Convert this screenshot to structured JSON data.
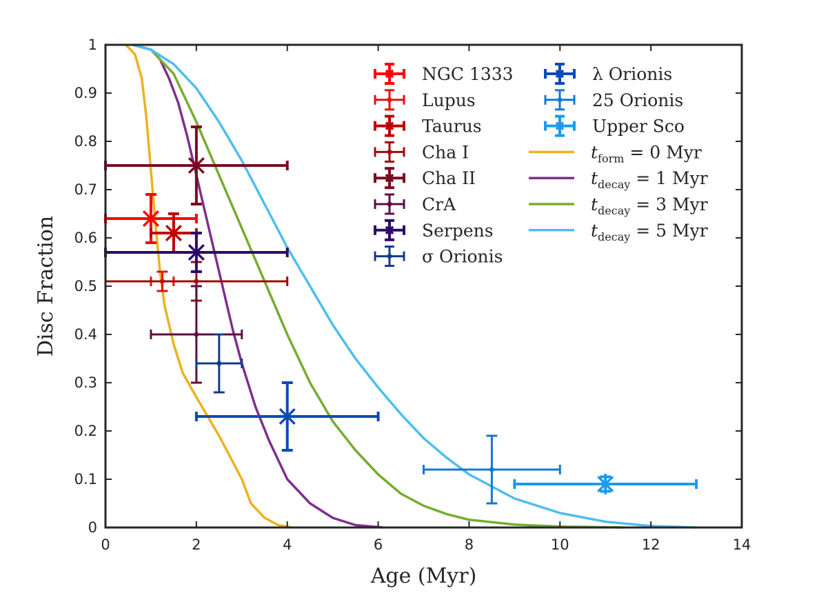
{
  "chart_data": {
    "type": "scatter",
    "xlabel": "Age (Myr)",
    "ylabel": "Disc Fraction",
    "xlim": [
      0,
      14
    ],
    "ylim": [
      0,
      1
    ],
    "xticks": [
      "0",
      "2",
      "4",
      "6",
      "8",
      "10",
      "12",
      "14"
    ],
    "yticks": [
      "0",
      "0.1",
      "0.2",
      "0.3",
      "0.4",
      "0.5",
      "0.6",
      "0.7",
      "0.8",
      "0.9",
      "1"
    ],
    "grid": false,
    "legend_position": "top-right",
    "points": [
      {
        "name": "NGC 1333",
        "x": 1.0,
        "y": 0.64,
        "xerr": [
          1.0,
          1.0
        ],
        "yerr": [
          0.05,
          0.05
        ],
        "marker": "asterisk",
        "color": "#ff0000"
      },
      {
        "name": "Lupus",
        "x": 1.25,
        "y": 0.51,
        "xerr": [
          0.25,
          0.25
        ],
        "yerr": [
          0.02,
          0.02
        ],
        "marker": "dot",
        "color": "#e81010"
      },
      {
        "name": "Taurus",
        "x": 1.5,
        "y": 0.61,
        "xerr": [
          0.5,
          0.5
        ],
        "yerr": [
          0.04,
          0.04
        ],
        "marker": "asterisk",
        "color": "#c00000"
      },
      {
        "name": "Cha I",
        "x": 2.0,
        "y": 0.51,
        "xerr": [
          2.0,
          2.0
        ],
        "yerr": [
          0.04,
          0.04
        ],
        "marker": "dot",
        "color": "#9e0b0b"
      },
      {
        "name": "Cha II",
        "x": 2.0,
        "y": 0.75,
        "xerr": [
          2.0,
          2.0
        ],
        "yerr": [
          0.08,
          0.08
        ],
        "marker": "asterisk",
        "color": "#7a0a22"
      },
      {
        "name": "CrA",
        "x": 2.0,
        "y": 0.4,
        "xerr": [
          1.0,
          1.0
        ],
        "yerr": [
          0.1,
          0.1
        ],
        "marker": "dot",
        "color": "#5a0f45"
      },
      {
        "name": "Serpens",
        "x": 2.0,
        "y": 0.57,
        "xerr": [
          2.0,
          2.0
        ],
        "yerr": [
          0.04,
          0.04
        ],
        "marker": "asterisk",
        "color": "#2c0a6b"
      },
      {
        "name": "σ Orionis",
        "x": 2.5,
        "y": 0.34,
        "xerr": [
          0.5,
          0.5
        ],
        "yerr": [
          0.06,
          0.06
        ],
        "marker": "dot",
        "color": "#133a8a"
      },
      {
        "name": "λ Orionis",
        "x": 4.0,
        "y": 0.23,
        "xerr": [
          2.0,
          2.0
        ],
        "yerr": [
          0.07,
          0.07
        ],
        "marker": "asterisk",
        "color": "#0b4bb8"
      },
      {
        "name": "25 Orionis",
        "x": 8.5,
        "y": 0.12,
        "xerr": [
          1.5,
          1.5
        ],
        "yerr": [
          0.07,
          0.07
        ],
        "marker": "dot",
        "color": "#1677d4"
      },
      {
        "name": "Upper Sco",
        "x": 11.0,
        "y": 0.09,
        "xerr": [
          2.0,
          2.0
        ],
        "yerr": [
          0.015,
          0.015
        ],
        "marker": "asterisk",
        "color": "#1c9af0"
      }
    ],
    "series": [
      {
        "name": "t_form = 0 Myr",
        "legend_prefix": "t",
        "legend_sub": "form",
        "legend_rest": " = 0 Myr",
        "color": "#edb120",
        "x": [
          0.45,
          0.65,
          0.8,
          0.9,
          1.0,
          1.1,
          1.2,
          1.3,
          1.5,
          1.7,
          2.0,
          2.5,
          3.0,
          3.2,
          3.5,
          3.8,
          4.1
        ],
        "y": [
          1.0,
          0.98,
          0.93,
          0.85,
          0.74,
          0.63,
          0.53,
          0.46,
          0.38,
          0.32,
          0.27,
          0.19,
          0.1,
          0.05,
          0.02,
          0.005,
          0.0
        ]
      },
      {
        "name": "t_decay = 1 Myr",
        "legend_prefix": "t",
        "legend_sub": "decay",
        "legend_rest": " = 1 Myr",
        "color": "#7e2f8e",
        "x": [
          0.6,
          1.0,
          1.2,
          1.4,
          1.6,
          1.8,
          2.0,
          2.2,
          2.4,
          2.6,
          2.8,
          3.0,
          3.3,
          3.6,
          4.0,
          4.5,
          5.0,
          5.5,
          6.1
        ],
        "y": [
          1.0,
          0.99,
          0.97,
          0.93,
          0.88,
          0.81,
          0.73,
          0.65,
          0.57,
          0.49,
          0.41,
          0.34,
          0.25,
          0.18,
          0.1,
          0.05,
          0.02,
          0.005,
          0.0
        ]
      },
      {
        "name": "t_decay = 3 Myr",
        "legend_prefix": "t",
        "legend_sub": "decay",
        "legend_rest": " = 3 Myr",
        "color": "#77ac30",
        "x": [
          0.6,
          1.0,
          1.5,
          2.0,
          2.5,
          3.0,
          3.5,
          4.0,
          4.5,
          5.0,
          5.5,
          6.0,
          6.5,
          7.0,
          7.5,
          8.0,
          9.0,
          10.0,
          11.4
        ],
        "y": [
          1.0,
          0.99,
          0.94,
          0.84,
          0.73,
          0.62,
          0.51,
          0.4,
          0.3,
          0.22,
          0.16,
          0.11,
          0.07,
          0.045,
          0.028,
          0.016,
          0.006,
          0.002,
          0.0
        ]
      },
      {
        "name": "t_decay = 5 Myr",
        "legend_prefix": "t",
        "legend_sub": "decay",
        "legend_rest": " = 5 Myr",
        "color": "#4dbeee",
        "x": [
          0.6,
          1.0,
          1.5,
          2.0,
          2.5,
          3.0,
          3.5,
          4.0,
          4.5,
          5.0,
          5.5,
          6.0,
          6.5,
          7.0,
          7.5,
          8.0,
          8.5,
          9.0,
          10.0,
          11.0,
          12.0,
          13.0
        ],
        "y": [
          1.0,
          0.99,
          0.96,
          0.91,
          0.84,
          0.76,
          0.67,
          0.58,
          0.5,
          0.42,
          0.35,
          0.29,
          0.235,
          0.185,
          0.145,
          0.11,
          0.085,
          0.06,
          0.03,
          0.012,
          0.003,
          0.0
        ]
      }
    ]
  }
}
